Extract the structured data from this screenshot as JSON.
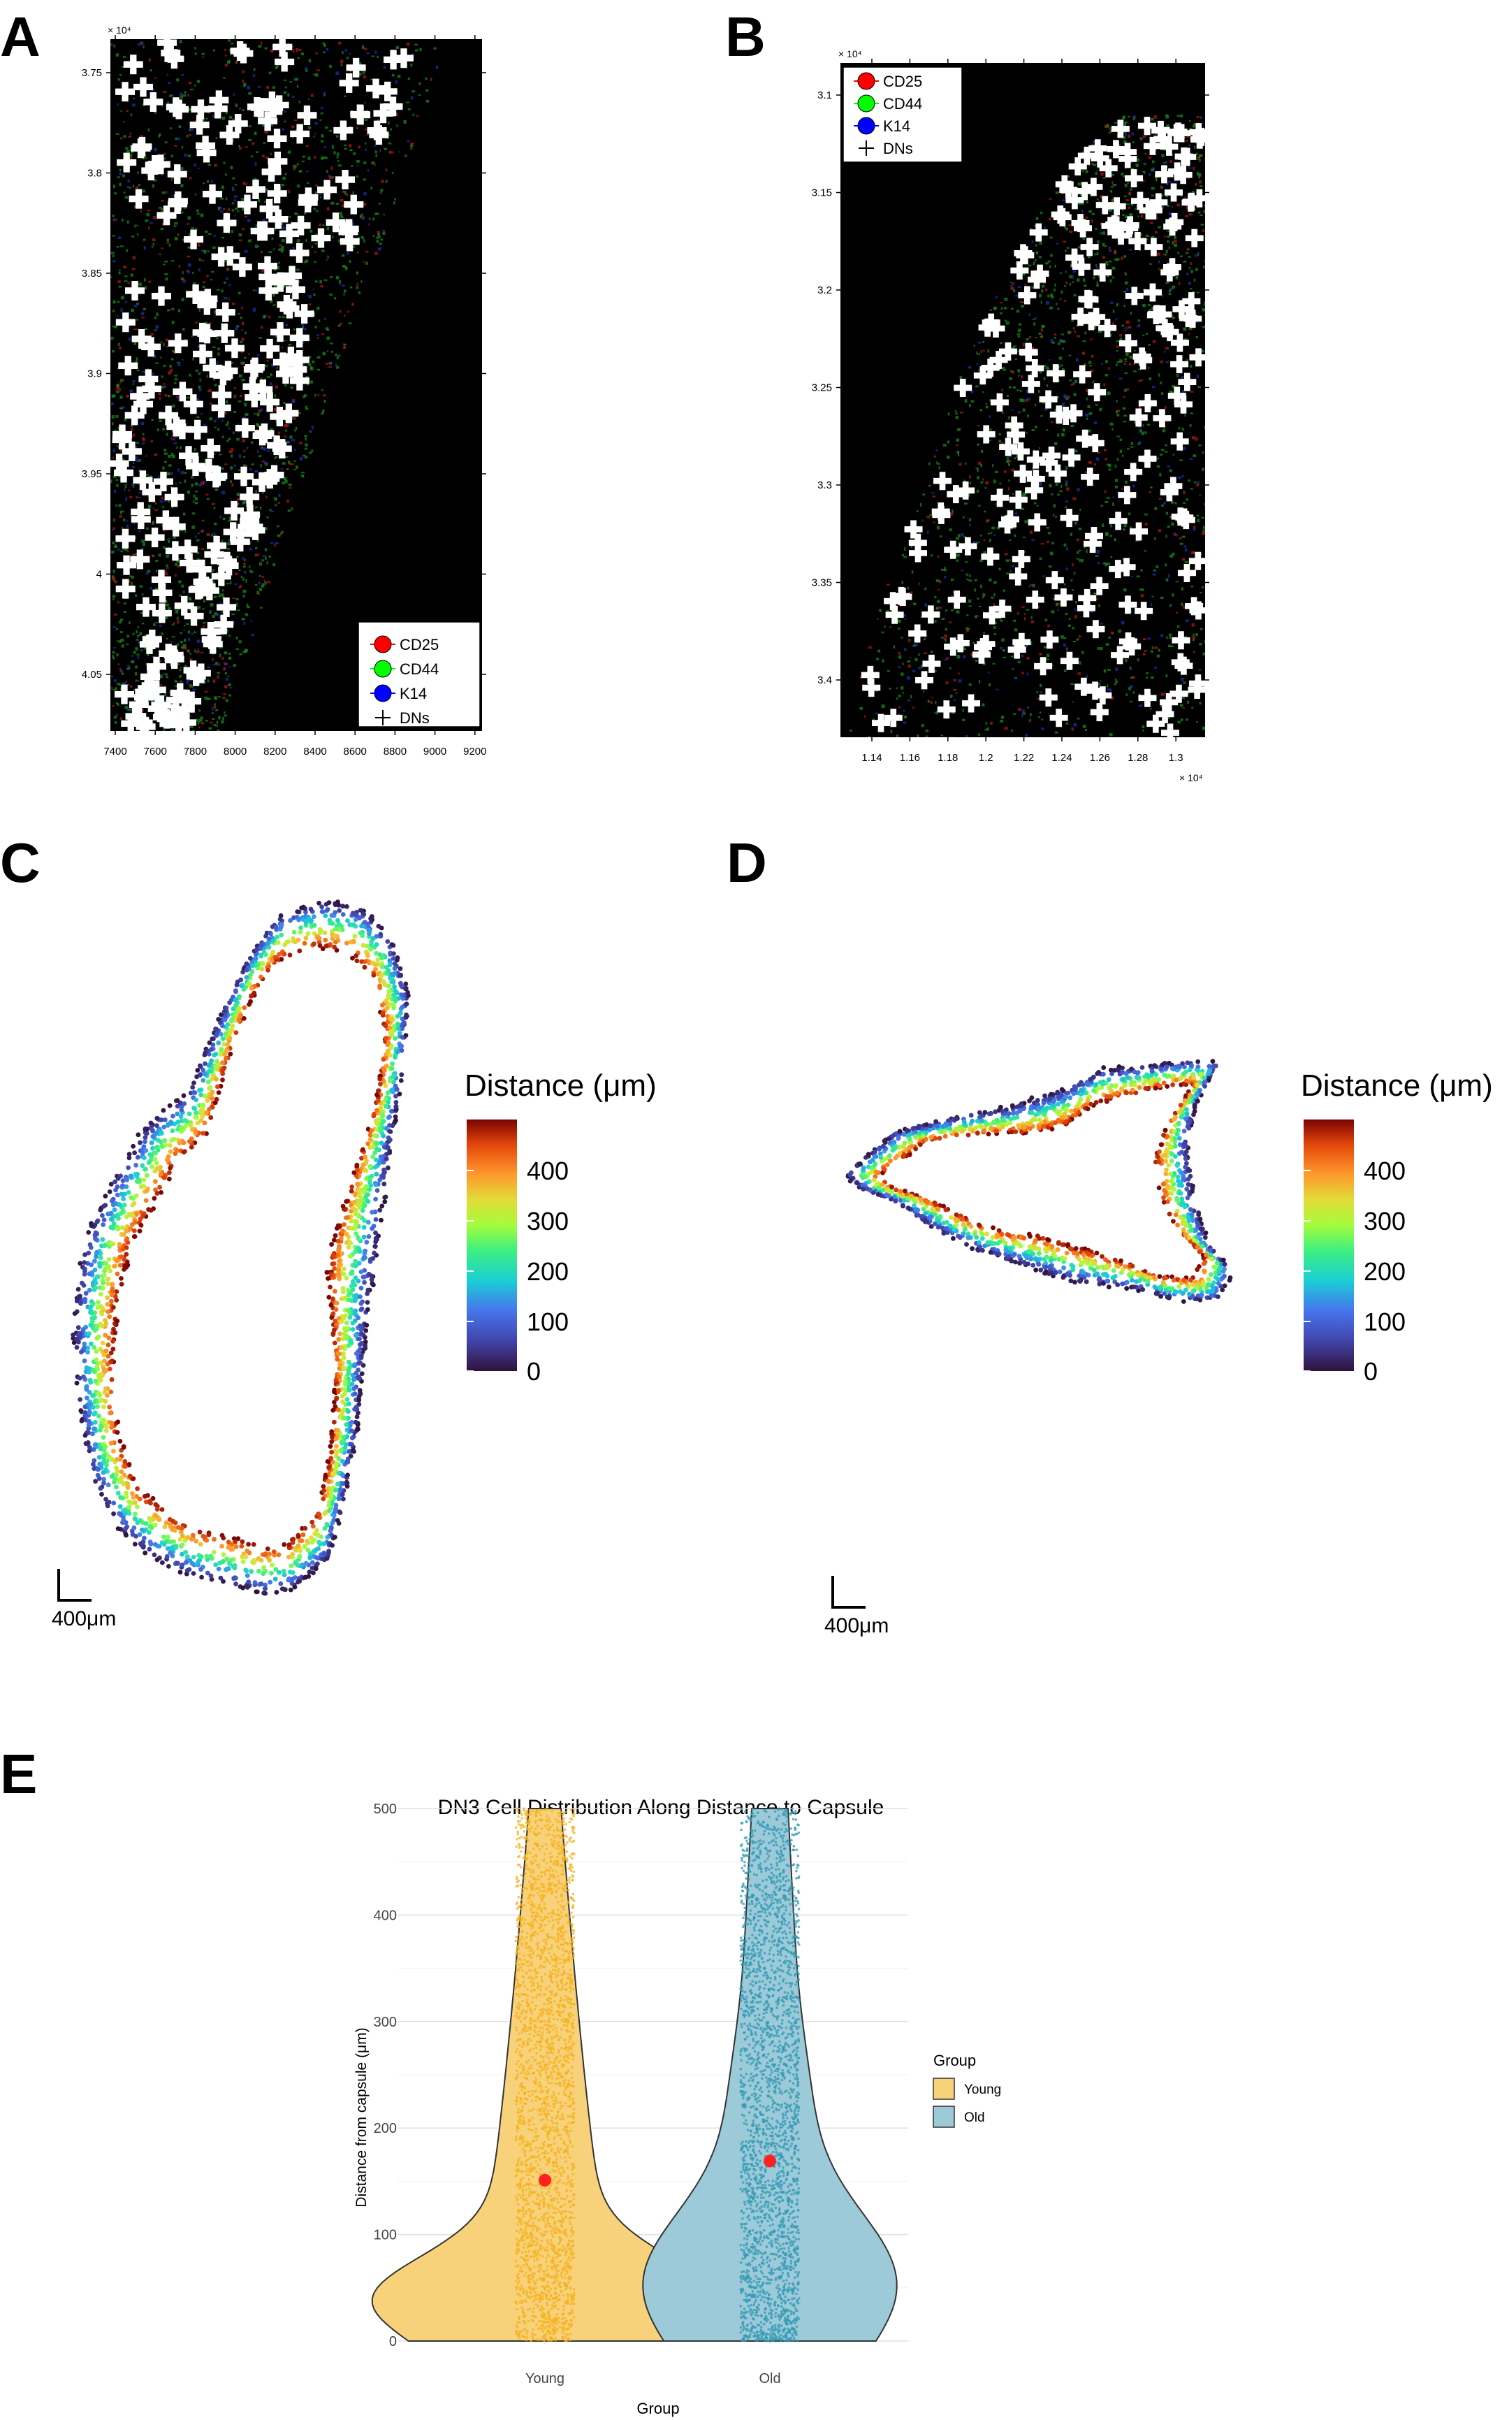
{
  "panels": {
    "A": {
      "letter": "A",
      "x_exponent": "",
      "y_exponent": "× 10⁴",
      "x_ticks": [
        "7400",
        "7600",
        "7800",
        "8000",
        "8200",
        "8400",
        "8600",
        "8800",
        "9000",
        "9200"
      ],
      "y_ticks": [
        "3.75",
        "3.8",
        "3.85",
        "3.9",
        "3.95",
        "4",
        "4.05"
      ],
      "legend": [
        "CD25",
        "CD44",
        "K14",
        "DNs"
      ]
    },
    "B": {
      "letter": "B",
      "x_exponent": "× 10⁴",
      "y_exponent": "× 10⁴",
      "x_ticks": [
        "1.14",
        "1.16",
        "1.18",
        "1.2",
        "1.22",
        "1.24",
        "1.26",
        "1.28",
        "1.3"
      ],
      "y_ticks": [
        "3.1",
        "3.15",
        "3.2",
        "3.25",
        "3.3",
        "3.35",
        "3.4"
      ],
      "legend": [
        "CD25",
        "CD44",
        "K14",
        "DNs"
      ]
    },
    "C": {
      "letter": "C",
      "colorbar_title": "Distance (μm)",
      "colorbar_ticks": [
        "400",
        "300",
        "200",
        "100",
        "0"
      ],
      "scale_bar": "400μm"
    },
    "D": {
      "letter": "D",
      "colorbar_title": "Distance (μm)",
      "colorbar_ticks": [
        "400",
        "300",
        "200",
        "100",
        "0"
      ],
      "scale_bar": "400μm"
    },
    "E": {
      "letter": "E"
    }
  },
  "legend_colors": {
    "CD25": "#ff0000",
    "CD44": "#00ff00",
    "K14": "#0000ff",
    "DNs": "#000000"
  },
  "colors": {
    "young": "#f5b21e",
    "old": "#3399b3",
    "mean_point": "#ff2020"
  },
  "chart_data": [
    {
      "type": "scatter",
      "panel": "A",
      "x_range": [
        7350,
        9250
      ],
      "y_range_x1e4": [
        3.74,
        4.08
      ]
    },
    {
      "type": "scatter",
      "panel": "B",
      "x_range_x1e4": [
        1.12,
        1.31
      ],
      "y_range_x1e4": [
        3.09,
        3.43
      ]
    },
    {
      "type": "violin",
      "panel": "E",
      "title": "DN3 Cell Distribution Along Distance to Capsule",
      "xlabel": "Group",
      "ylabel": "Distance from capsule (μm)",
      "ylim": [
        0,
        500
      ],
      "y_ticks": [
        0,
        100,
        200,
        300,
        400,
        500
      ],
      "categories": [
        "Young",
        "Old"
      ],
      "means": [
        151,
        169
      ],
      "legend_title": "Group",
      "legend": [
        "Young",
        "Old"
      ],
      "legend_position": "right",
      "grid": true
    }
  ]
}
